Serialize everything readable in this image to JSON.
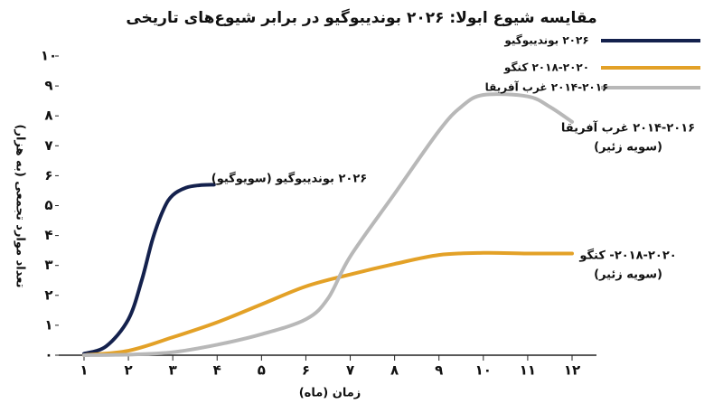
{
  "chart_data": {
    "type": "line",
    "title": "مقایسه شیوع ابولا: ۲۰۲۶ بوندیبوگیو در برابر شیوع‌های تاریخی",
    "x_label": "زمان (ماه)",
    "y_label": "تعداد موارد تجمعی (به هزار)",
    "xlim": [
      0.43,
      12.55
    ],
    "ylim": [
      0,
      10
    ],
    "xticks": [
      {
        "value": 1,
        "label": "۱"
      },
      {
        "value": 2,
        "label": "۲"
      },
      {
        "value": 3,
        "label": "۳"
      },
      {
        "value": 4,
        "label": "۴"
      },
      {
        "value": 5,
        "label": "۵"
      },
      {
        "value": 6,
        "label": "۶"
      },
      {
        "value": 7,
        "label": "۷"
      },
      {
        "value": 8,
        "label": "۸"
      },
      {
        "value": 9,
        "label": "۹"
      },
      {
        "value": 10,
        "label": "۱۰"
      },
      {
        "value": 11,
        "label": "۱۱"
      },
      {
        "value": 12,
        "label": "۱۲"
      }
    ],
    "yticks": [
      {
        "value": 0,
        "label": "۰"
      },
      {
        "value": 1,
        "label": "۱"
      },
      {
        "value": 2,
        "label": "۲"
      },
      {
        "value": 3,
        "label": "۳"
      },
      {
        "value": 4,
        "label": "۴"
      },
      {
        "value": 5,
        "label": "۵"
      },
      {
        "value": 6,
        "label": "۶"
      },
      {
        "value": 7,
        "label": "۷"
      },
      {
        "value": 8,
        "label": "۸"
      },
      {
        "value": 9,
        "label": "۹"
      },
      {
        "value": 10,
        "label": "۱۰"
      }
    ],
    "series": [
      {
        "name": "۲۰۲۶ بوندیبوگیو",
        "color": "#14214d",
        "annotation": [
          "۲۰۲۶ بوندیبوگیو (سویوگیو)"
        ],
        "x": [
          1,
          1.5,
          2,
          2.3,
          2.55,
          2.8,
          3,
          3.3,
          3.6,
          3.93
        ],
        "values": [
          0.05,
          0.3,
          1.2,
          2.5,
          3.9,
          4.9,
          5.35,
          5.6,
          5.68,
          5.7
        ]
      },
      {
        "name": "۲۰۱۸-۲۰۲۰ کنگو",
        "color": "#e3a127",
        "annotation": [
          "۲۰۱۸-۲۰۲۰- کنگو",
          "(سویه زئیر)"
        ],
        "x": [
          1,
          2,
          3,
          4,
          5,
          6,
          7,
          8,
          9,
          10,
          11,
          12
        ],
        "values": [
          0,
          0.15,
          0.6,
          1.1,
          1.7,
          2.3,
          2.7,
          3.05,
          3.35,
          3.42,
          3.4,
          3.4
        ]
      },
      {
        "name": "۲۰۱۴-۲۰۱۶ غرب آفریقا",
        "color": "#b8b8b8",
        "annotation": [
          "۲۰۱۴-۲۰۱۶ غرب آفریقا",
          "(سویه زئیر)"
        ],
        "x": [
          1,
          2,
          3,
          4,
          5,
          6,
          6.5,
          7,
          8,
          9,
          9.5,
          10,
          11,
          11.5,
          12
        ],
        "values": [
          0,
          0.02,
          0.1,
          0.35,
          0.7,
          1.2,
          1.9,
          3.3,
          5.4,
          7.5,
          8.3,
          8.7,
          8.65,
          8.3,
          7.8
        ]
      }
    ]
  }
}
